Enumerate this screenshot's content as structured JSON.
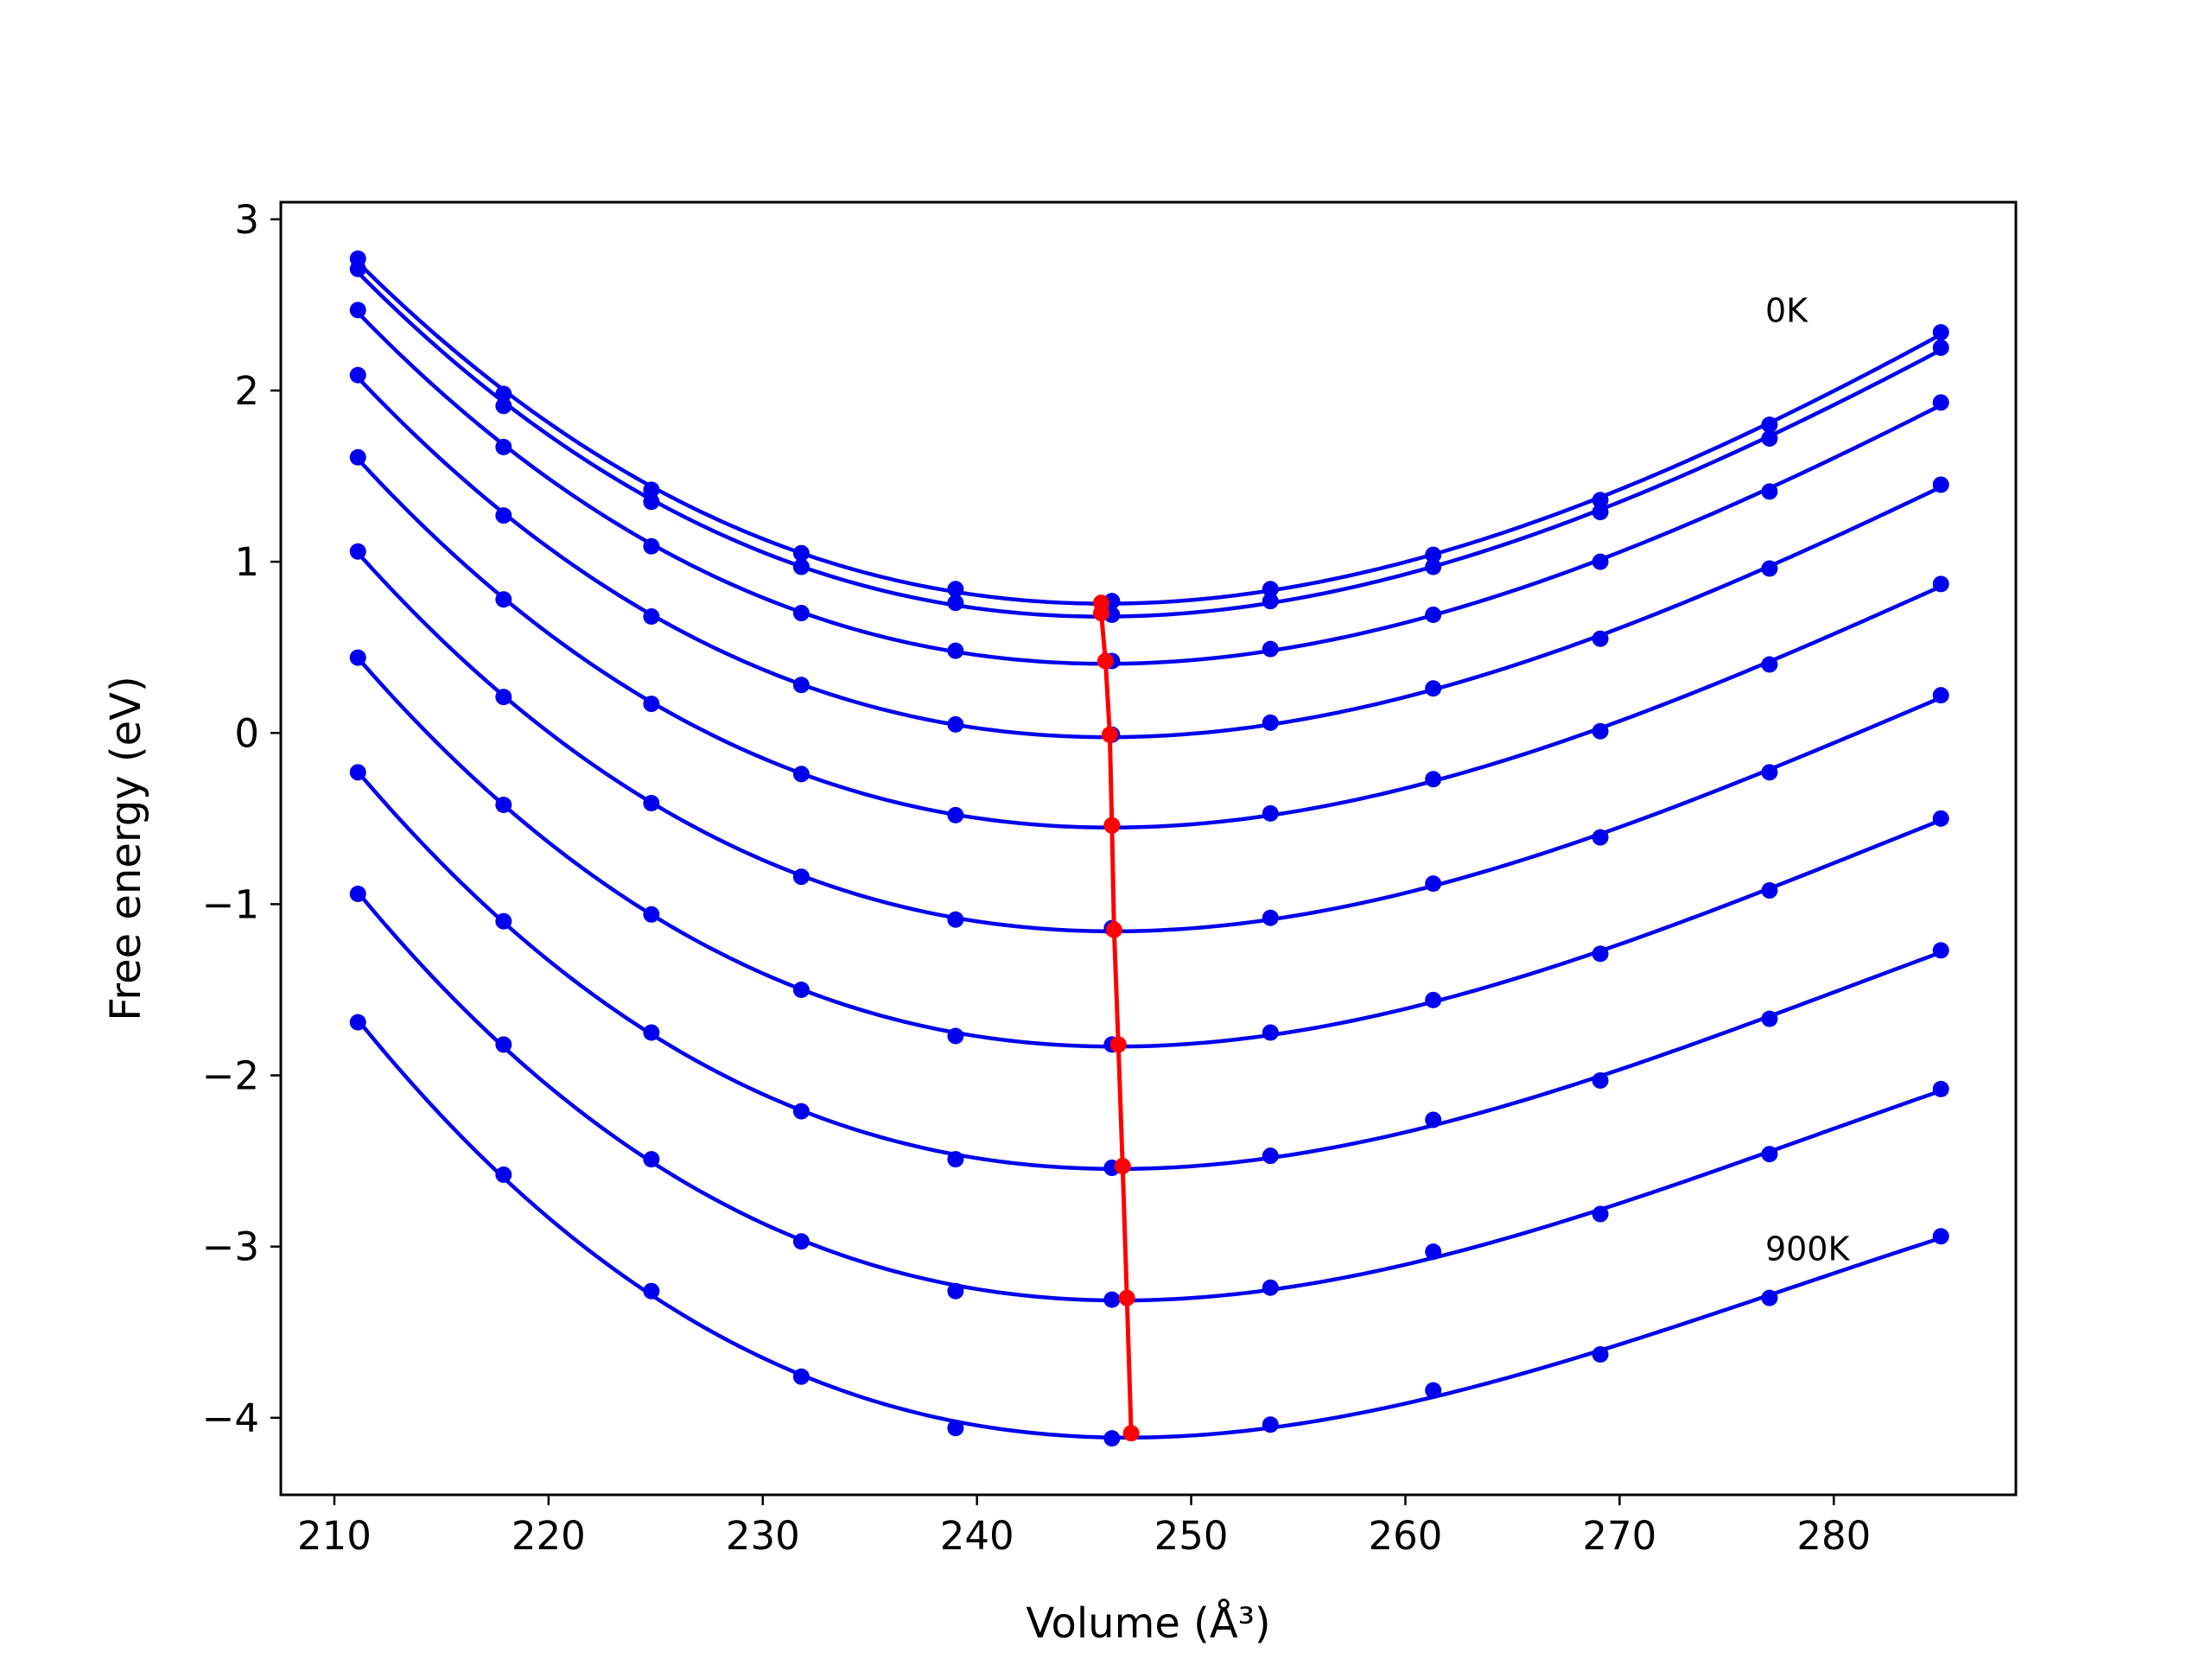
{
  "chart_data": {
    "type": "line",
    "title": "",
    "xlabel": "Volume (Å³)",
    "ylabel": "Free energy (eV)",
    "xlim": [
      207.5,
      288.5
    ],
    "ylim": [
      -4.45,
      3.1
    ],
    "xticks": [
      210,
      220,
      230,
      240,
      250,
      260,
      270,
      280
    ],
    "xtick_labels": [
      "210",
      "220",
      "230",
      "240",
      "250",
      "260",
      "270",
      "280"
    ],
    "yticks": [
      3,
      2,
      1,
      0,
      -1,
      -2,
      -3,
      -4
    ],
    "ytick_labels": [
      "3",
      "2",
      "1",
      "0",
      "−1",
      "−2",
      "−3",
      "−4"
    ],
    "grid": false,
    "legend": "none",
    "annotations": [
      {
        "text": "0K",
        "x": 276.8,
        "y": 2.4
      },
      {
        "text": "900K",
        "x": 276.8,
        "y": -3.08
      }
    ],
    "curve_color": "#0000ee",
    "minimum_color": "#ff0000",
    "x": [
      211.1,
      217.9,
      224.8,
      231.8,
      239.0,
      246.3,
      253.7,
      261.3,
      269.1,
      277.0,
      285.0
    ],
    "series": [
      {
        "values": [
          2.77,
          1.98,
          1.42,
          1.05,
          0.84,
          0.77,
          0.84,
          1.04,
          1.36,
          1.8,
          2.34
        ],
        "min": {
          "x": 245.8,
          "y": 0.76
        }
      },
      {
        "values": [
          2.71,
          1.91,
          1.35,
          0.97,
          0.76,
          0.69,
          0.77,
          0.97,
          1.29,
          1.72,
          2.25
        ],
        "min": {
          "x": 245.8,
          "y": 0.7
        }
      },
      {
        "values": [
          2.47,
          1.67,
          1.09,
          0.7,
          0.48,
          0.42,
          0.49,
          0.69,
          1.0,
          1.41,
          1.93
        ],
        "min": {
          "x": 246.0,
          "y": 0.42
        }
      },
      {
        "values": [
          2.09,
          1.27,
          0.68,
          0.28,
          0.05,
          -0.01,
          0.06,
          0.26,
          0.55,
          0.96,
          1.45
        ],
        "min": {
          "x": 246.2,
          "y": -0.01
        }
      },
      {
        "values": [
          1.61,
          0.78,
          0.17,
          -0.24,
          -0.48,
          -0.54,
          -0.47,
          -0.27,
          0.01,
          0.4,
          0.87
        ],
        "min": {
          "x": 246.3,
          "y": -0.54
        }
      },
      {
        "values": [
          1.06,
          0.21,
          -0.41,
          -0.84,
          -1.09,
          -1.14,
          -1.08,
          -0.88,
          -0.61,
          -0.23,
          0.22
        ],
        "min": {
          "x": 246.4,
          "y": -1.15
        }
      },
      {
        "values": [
          0.44,
          -0.42,
          -1.06,
          -1.5,
          -1.77,
          -1.82,
          -1.75,
          -1.56,
          -1.29,
          -0.92,
          -0.5
        ],
        "min": {
          "x": 246.6,
          "y": -1.82
        }
      },
      {
        "values": [
          -0.23,
          -1.1,
          -1.75,
          -2.21,
          -2.49,
          -2.54,
          -2.47,
          -2.26,
          -2.03,
          -1.67,
          -1.27
        ],
        "min": {
          "x": 246.8,
          "y": -2.53
        }
      },
      {
        "values": [
          -0.94,
          -1.82,
          -2.49,
          -2.97,
          -3.26,
          -3.31,
          -3.24,
          -3.03,
          -2.81,
          -2.46,
          -2.08
        ],
        "min": {
          "x": 247.0,
          "y": -3.3
        }
      },
      {
        "values": [
          -1.69,
          -2.58,
          -3.26,
          -3.76,
          -4.06,
          -4.12,
          -4.04,
          -3.84,
          -3.63,
          -3.3,
          -2.94
        ],
        "min": {
          "x": 247.2,
          "y": -4.09
        }
      }
    ]
  }
}
